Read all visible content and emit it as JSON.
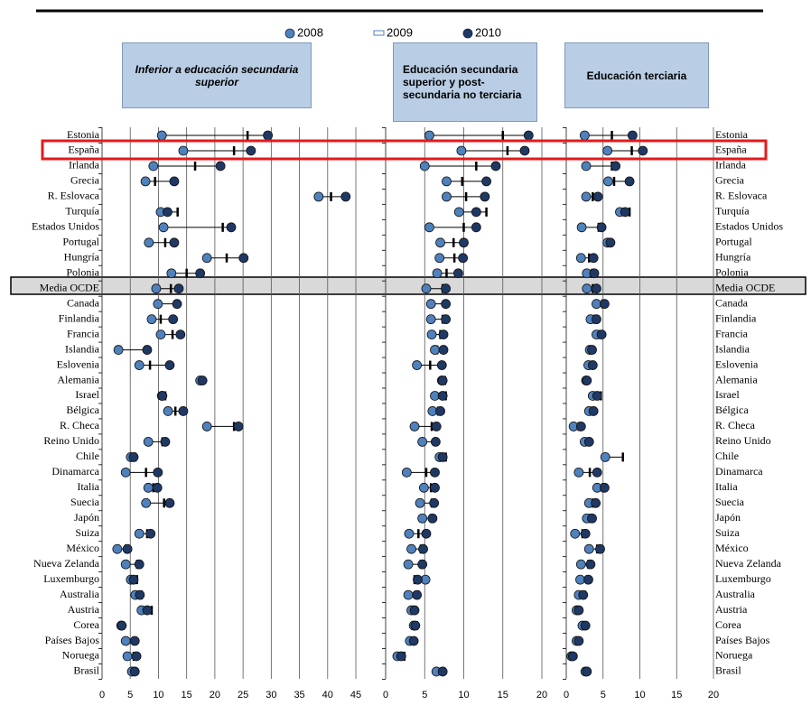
{
  "chart_data": [
    {
      "type": "dot",
      "title": "Inferior a educación secundaria superior",
      "categories": [
        "Estonia",
        "España",
        "Irlanda",
        "Grecia",
        "R. Eslovaca",
        "Turquía",
        "Estados Unidos",
        "Portugal",
        "Hungría",
        "Polonia",
        "Media OCDE",
        "Canada",
        "Finlandia",
        "Francia",
        "Islandia",
        "Eslovenia",
        "Alemania",
        "Israel",
        "Bélgica",
        "R. Checa",
        "Reino Unido",
        "Chile",
        "Dinamarca",
        "Italia",
        "Suecia",
        "Japón",
        "Suiza",
        "México",
        "Nueva Zelanda",
        "Luxemburgo",
        "Australia",
        "Austria",
        "Corea",
        "Países Bajos",
        "Noruega",
        "Brasil"
      ],
      "series": [
        {
          "name": "2008",
          "color": "#4f81bd",
          "values": [
            10.6,
            14.4,
            9.1,
            7.7,
            38.4,
            10.4,
            10.9,
            8.3,
            18.6,
            12.3,
            9.6,
            9.9,
            8.8,
            10.4,
            2.9,
            6.6,
            17.4,
            10.6,
            11.7,
            18.6,
            8.2,
            5.1,
            4.2,
            8.2,
            7.8,
            null,
            6.6,
            2.7,
            4.2,
            5.1,
            5.9,
            7.0,
            3.4,
            4.2,
            4.5,
            5.3
          ]
        },
        {
          "name": "2009",
          "color": "#000000",
          "values": [
            25.8,
            23.4,
            16.5,
            9.4,
            40.6,
            13.4,
            21.4,
            11.2,
            22.1,
            15.0,
            12.2,
            13.4,
            10.4,
            12.5,
            7.8,
            8.5,
            17.6,
            11.2,
            13.0,
            23.4,
            10.7,
            5.9,
            7.8,
            9.1,
            11.0,
            null,
            8.0,
            4.2,
            6.2,
            6.2,
            7.0,
            8.8,
            3.7,
            5.6,
            5.6,
            5.8
          ]
        },
        {
          "name": "2010",
          "color": "#1f3864",
          "values": [
            29.4,
            26.4,
            21.0,
            12.8,
            43.2,
            11.6,
            22.9,
            12.8,
            25.1,
            17.4,
            13.6,
            13.3,
            12.6,
            13.9,
            8.0,
            12.0,
            17.8,
            10.7,
            14.4,
            24.2,
            11.2,
            5.6,
            9.9,
            9.8,
            12.0,
            null,
            8.6,
            4.5,
            6.6,
            5.6,
            6.7,
            8.0,
            3.5,
            5.8,
            6.1,
            5.8
          ]
        }
      ],
      "xlim": [
        0,
        49
      ],
      "xticks": [
        0,
        5,
        10,
        15,
        20,
        25,
        30,
        35,
        40,
        45
      ]
    },
    {
      "type": "dot",
      "title": "Educación secundaria superior y post-secundaria no terciaria",
      "series": [
        {
          "values": [
            5.6,
            9.7,
            5.0,
            7.8,
            7.8,
            9.4,
            5.6,
            7.0,
            6.9,
            6.6,
            5.2,
            5.8,
            5.8,
            5.9,
            6.3,
            4.0,
            7.2,
            6.3,
            6.0,
            3.7,
            4.7,
            6.9,
            2.7,
            4.9,
            4.4,
            4.7,
            3.0,
            3.3,
            2.9,
            5.1,
            2.9,
            3.3,
            3.6,
            3.1,
            1.5,
            6.5
          ]
        },
        {
          "values": [
            15.0,
            15.6,
            11.6,
            9.8,
            10.3,
            12.9,
            10.0,
            8.7,
            8.8,
            7.8,
            7.3,
            7.7,
            7.3,
            7.0,
            6.6,
            5.7,
            7.6,
            7.7,
            6.7,
            5.9,
            6.3,
            7.7,
            5.2,
            5.8,
            5.9,
            5.8,
            4.2,
            4.5,
            4.5,
            3.7,
            4.2,
            3.8,
            4.0,
            3.5,
            2.4,
            7.4
          ]
        },
        {
          "values": [
            18.3,
            17.8,
            14.1,
            12.9,
            12.7,
            11.6,
            11.6,
            10.0,
            9.9,
            9.3,
            7.7,
            7.7,
            7.7,
            7.4,
            7.4,
            7.2,
            7.3,
            7.3,
            7.0,
            6.5,
            6.4,
            7.3,
            6.3,
            6.3,
            6.2,
            6.0,
            5.2,
            4.8,
            4.7,
            4.1,
            4.0,
            3.7,
            3.8,
            3.6,
            2.0,
            7.3
          ]
        }
      ],
      "xlim": [
        0,
        20
      ],
      "xticks": [
        0,
        5,
        10,
        15,
        20
      ]
    },
    {
      "type": "dot",
      "title": "Educación terciaria",
      "categories": [
        "Estonia",
        "España",
        "Irlanda",
        "Grecia",
        "R. Eslovaca",
        "Turquía",
        "Estados Unidos",
        "Portugal",
        "Hungría",
        "Polonia",
        "Media OCDE",
        "Canada",
        "Finlandia",
        "Francia",
        "Islandia",
        "Eslovenia",
        "Alemania",
        "Israel",
        "Bélgica",
        "R. Checa",
        "Reino Unido",
        "Chile",
        "Dinamarca",
        "Italia",
        "Suecia",
        "Japón",
        "Suiza",
        "México",
        "Nueva Zelanda",
        "Luxemburgo",
        "Australia",
        "Austria",
        "Corea",
        "Países Bajos",
        "Noruega",
        "Brasil"
      ],
      "series": [
        {
          "values": [
            2.5,
            5.6,
            2.7,
            5.7,
            2.7,
            7.3,
            2.1,
            5.6,
            2.0,
            2.8,
            2.8,
            4.1,
            3.3,
            4.1,
            3.2,
            3.0,
            2.7,
            3.6,
            3.1,
            1.0,
            2.5,
            5.3,
            1.7,
            4.2,
            3.1,
            2.8,
            1.2,
            3.1,
            2.0,
            1.9,
            1.7,
            1.4,
            2.2,
            1.4,
            0.7,
            2.6
          ]
        },
        {
          "values": [
            6.2,
            8.9,
            6.2,
            6.5,
            3.6,
            8.6,
            4.4,
            5.8,
            3.1,
            3.5,
            3.6,
            4.9,
            3.8,
            4.4,
            3.3,
            3.3,
            2.8,
            4.7,
            3.5,
            1.7,
            3.0,
            7.7,
            3.2,
            4.9,
            3.6,
            3.2,
            2.2,
            4.2,
            3.0,
            2.8,
            2.5,
            1.7,
            2.6,
            1.7,
            0.9,
            2.8
          ]
        },
        {
          "values": [
            9.0,
            10.4,
            6.7,
            8.6,
            4.3,
            8.0,
            4.8,
            6.0,
            3.7,
            3.8,
            4.1,
            5.2,
            4.1,
            4.8,
            3.5,
            3.6,
            2.8,
            4.2,
            3.7,
            2.0,
            3.1,
            null,
            4.2,
            5.2,
            4.0,
            3.5,
            2.6,
            4.6,
            3.3,
            3.0,
            2.3,
            1.7,
            2.6,
            1.7,
            0.9,
            2.8
          ]
        }
      ],
      "xlim": [
        0,
        20
      ],
      "xticks": [
        0,
        5,
        10,
        15,
        20
      ]
    }
  ]
}
